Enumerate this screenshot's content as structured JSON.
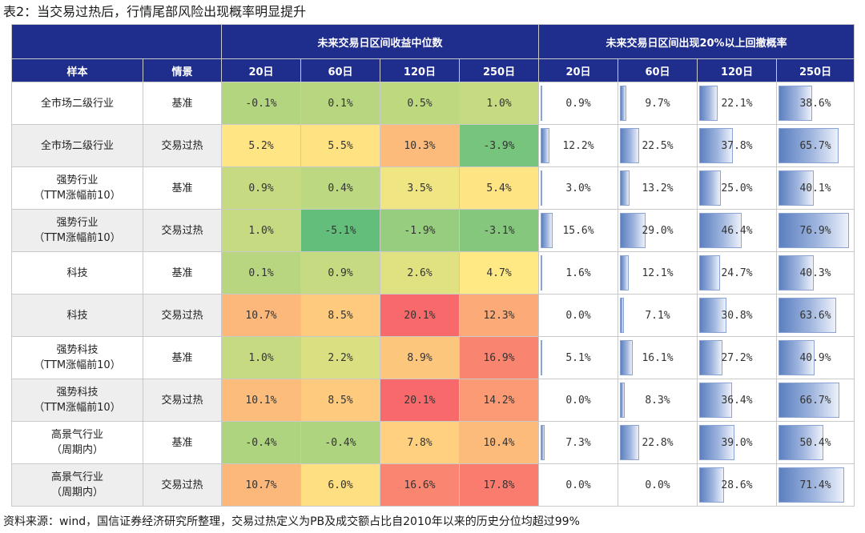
{
  "title": "表2：当交易过热后，行情尾部风险出现概率明显提升",
  "header": {
    "group_median": "未来交易日区间收益中位数",
    "group_drawdown": "未来交易日区间出现20%以上回撤概率",
    "sample": "样本",
    "scenario": "情景",
    "median_days": [
      "20日",
      "60日",
      "120日",
      "250日"
    ],
    "drawdown_days": [
      "20日",
      "60日",
      "120日",
      "250日"
    ]
  },
  "colors": {
    "header_bg": "#1f2d8c",
    "heat_low": "#63be7b",
    "heat_mid": "#ffeb84",
    "heat_high": "#f8696b",
    "bar_fill": "#5b7fc0"
  },
  "rows": [
    {
      "sample_lines": [
        "全市场二级行业",
        ""
      ],
      "scenario": "基准",
      "median": [
        "-0.1%",
        "0.1%",
        "0.5%",
        "1.0%"
      ],
      "median_values": [
        -0.1,
        0.1,
        0.5,
        1.0
      ],
      "drawdown": [
        "0.9%",
        "9.7%",
        "22.1%",
        "38.6%"
      ],
      "drawdown_values": [
        0.9,
        9.7,
        22.1,
        38.6
      ]
    },
    {
      "sample_lines": [
        "全市场二级行业",
        ""
      ],
      "scenario": "交易过热",
      "median": [
        "5.2%",
        "5.5%",
        "10.3%",
        "-3.9%"
      ],
      "median_values": [
        5.2,
        5.5,
        10.3,
        -3.9
      ],
      "drawdown": [
        "12.2%",
        "22.5%",
        "37.8%",
        "65.7%"
      ],
      "drawdown_values": [
        12.2,
        22.5,
        37.8,
        65.7
      ]
    },
    {
      "sample_lines": [
        "强势行业",
        "（TTM涨幅前10）"
      ],
      "scenario": "基准",
      "median": [
        "0.9%",
        "0.4%",
        "3.5%",
        "5.4%"
      ],
      "median_values": [
        0.9,
        0.4,
        3.5,
        5.4
      ],
      "drawdown": [
        "3.0%",
        "13.2%",
        "25.0%",
        "40.1%"
      ],
      "drawdown_values": [
        3.0,
        13.2,
        25.0,
        40.1
      ]
    },
    {
      "sample_lines": [
        "强势行业",
        "（TTM涨幅前10）"
      ],
      "scenario": "交易过热",
      "median": [
        "1.0%",
        "-5.1%",
        "-1.9%",
        "-3.1%"
      ],
      "median_values": [
        1.0,
        -5.1,
        -1.9,
        -3.1
      ],
      "drawdown": [
        "15.6%",
        "29.0%",
        "46.4%",
        "76.9%"
      ],
      "drawdown_values": [
        15.6,
        29.0,
        46.4,
        76.9
      ]
    },
    {
      "sample_lines": [
        "科技",
        ""
      ],
      "scenario": "基准",
      "median": [
        "0.1%",
        "0.9%",
        "2.6%",
        "4.7%"
      ],
      "median_values": [
        0.1,
        0.9,
        2.6,
        4.7
      ],
      "drawdown": [
        "1.6%",
        "12.1%",
        "24.7%",
        "40.3%"
      ],
      "drawdown_values": [
        1.6,
        12.1,
        24.7,
        40.3
      ]
    },
    {
      "sample_lines": [
        "科技",
        ""
      ],
      "scenario": "交易过热",
      "median": [
        "10.7%",
        "8.5%",
        "20.1%",
        "12.3%"
      ],
      "median_values": [
        10.7,
        8.5,
        20.1,
        12.3
      ],
      "drawdown": [
        "0.0%",
        "7.1%",
        "30.8%",
        "63.6%"
      ],
      "drawdown_values": [
        0.0,
        7.1,
        30.8,
        63.6
      ]
    },
    {
      "sample_lines": [
        "强势科技",
        "（TTM涨幅前10）"
      ],
      "scenario": "基准",
      "median": [
        "1.0%",
        "2.2%",
        "8.9%",
        "16.9%"
      ],
      "median_values": [
        1.0,
        2.2,
        8.9,
        16.9
      ],
      "drawdown": [
        "5.1%",
        "16.1%",
        "27.2%",
        "40.9%"
      ],
      "drawdown_values": [
        5.1,
        16.1,
        27.2,
        40.9
      ]
    },
    {
      "sample_lines": [
        "强势科技",
        "（TTM涨幅前10）"
      ],
      "scenario": "交易过热",
      "median": [
        "10.1%",
        "8.5%",
        "20.1%",
        "14.2%"
      ],
      "median_values": [
        10.1,
        8.5,
        20.1,
        14.2
      ],
      "drawdown": [
        "0.0%",
        "8.3%",
        "36.4%",
        "66.7%"
      ],
      "drawdown_values": [
        0.0,
        8.3,
        36.4,
        66.7
      ]
    },
    {
      "sample_lines": [
        "高景气行业",
        "（周期内）"
      ],
      "scenario": "基准",
      "median": [
        "-0.4%",
        "-0.4%",
        "7.8%",
        "10.4%"
      ],
      "median_values": [
        -0.4,
        -0.4,
        7.8,
        10.4
      ],
      "drawdown": [
        "7.3%",
        "22.8%",
        "39.0%",
        "50.4%"
      ],
      "drawdown_values": [
        7.3,
        22.8,
        39.0,
        50.4
      ]
    },
    {
      "sample_lines": [
        "高景气行业",
        "（周期内）"
      ],
      "scenario": "交易过热",
      "median": [
        "10.7%",
        "6.0%",
        "16.6%",
        "17.8%"
      ],
      "median_values": [
        10.7,
        6.0,
        16.6,
        17.8
      ],
      "drawdown": [
        "0.0%",
        "0.0%",
        "28.6%",
        "71.4%"
      ],
      "drawdown_values": [
        0.0,
        0.0,
        28.6,
        71.4
      ]
    }
  ],
  "source": "资料来源：wind，国信证券经济研究所整理，交易过热定义为PB及成交额占比自2010年以来的历史分位均超过99%"
}
